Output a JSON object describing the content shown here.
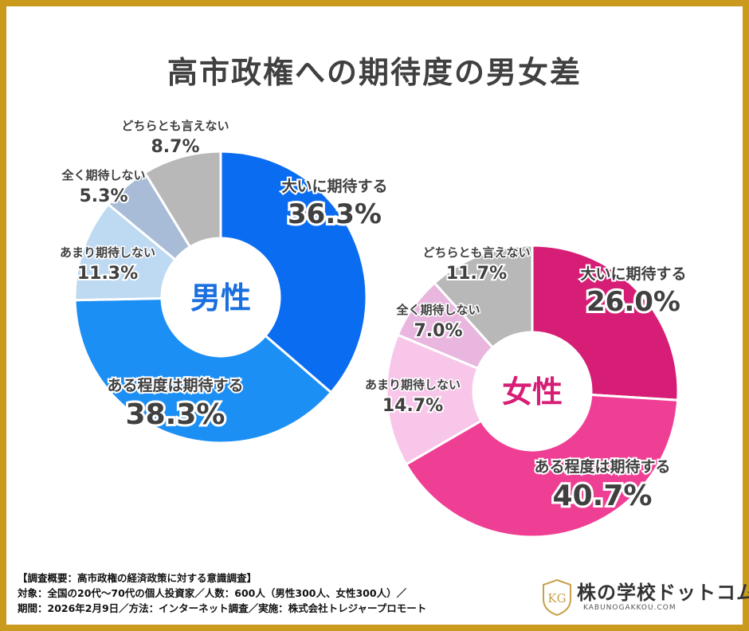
{
  "title": "高市政権への期待度の男女差",
  "colors": {
    "border": "#c99a1b",
    "male": [
      "#0a6cf0",
      "#1c8ff5",
      "#bed9f2",
      "#a8bcd8",
      "#b8b8b8"
    ],
    "female": [
      "#d61e76",
      "#ef3f95",
      "#f8c6e9",
      "#e8b6de",
      "#b8b8b8"
    ],
    "male_center": "#1a6fe0",
    "female_center": "#d61e76",
    "label_text": "#404040"
  },
  "chart_data": [
    {
      "type": "donut",
      "center_label": "男性",
      "categories": [
        "大いに期待する",
        "ある程度は期待する",
        "あまり期待しない",
        "全く期待しない",
        "どちらとも言えない"
      ],
      "values": [
        36.3,
        38.3,
        11.3,
        5.3,
        8.7
      ],
      "value_labels": [
        "36.3%",
        "38.3%",
        "11.3%",
        "5.3%",
        "8.7%"
      ]
    },
    {
      "type": "donut",
      "center_label": "女性",
      "categories": [
        "大いに期待する",
        "ある程度は期待する",
        "あまり期待しない",
        "全く期待しない",
        "どちらとも言えない"
      ],
      "values": [
        26.0,
        40.7,
        14.7,
        7.0,
        11.7
      ],
      "value_labels": [
        "26.0%",
        "40.7%",
        "14.7%",
        "7.0%",
        "11.7%"
      ]
    }
  ],
  "footer": {
    "line1": "【調査概要：高市政権の経済政策に対する意識調査】",
    "line2": "対象：全国の20代～70代の個人投資家／人数：600人（男性300人、女性300人）／",
    "line3": "期間：2026年2月9日／方法：インターネット調査／実施：株式会社トレジャープロモート"
  },
  "logo": {
    "name": "株の学校ドットコム",
    "url": "KABUNOGAKKOU.COM",
    "mark": "KG"
  }
}
